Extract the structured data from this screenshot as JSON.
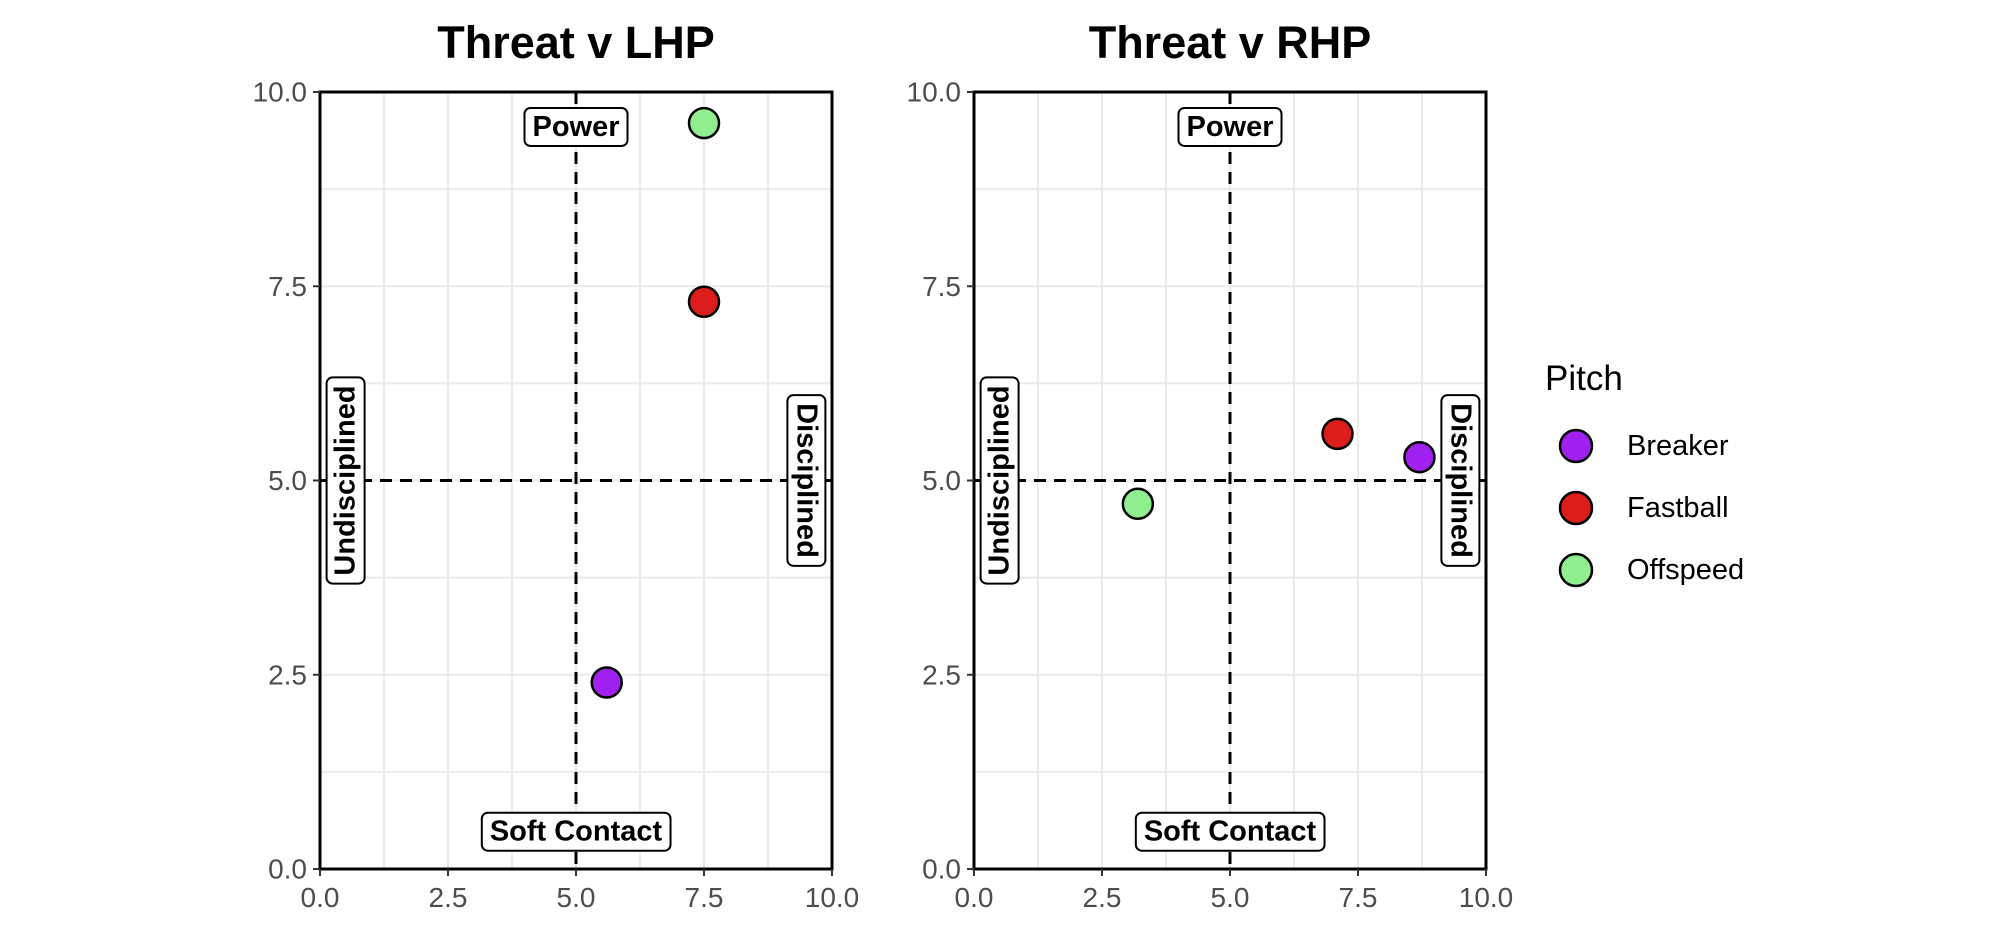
{
  "legend": {
    "title": "Pitch",
    "items": [
      {
        "label": "Breaker",
        "color": "#a020f0"
      },
      {
        "label": "Fastball",
        "color": "#dd1c1c"
      },
      {
        "label": "Offspeed",
        "color": "#90ee90"
      }
    ]
  },
  "chart_data": [
    {
      "type": "scatter",
      "title": "Threat v LHP",
      "xlim": [
        0,
        10
      ],
      "ylim": [
        0,
        10
      ],
      "xticks": [
        0.0,
        2.5,
        5.0,
        7.5,
        10.0
      ],
      "yticks": [
        0.0,
        2.5,
        5.0,
        7.5,
        10.0
      ],
      "xtick_labels": [
        "0.0",
        "2.5",
        "5.0",
        "7.5",
        "10.0"
      ],
      "ytick_labels": [
        "0.0",
        "2.5",
        "5.0",
        "7.5",
        "10.0"
      ],
      "reference_lines": {
        "x": 5.0,
        "y": 5.0,
        "style": "dashed"
      },
      "quadrant_labels": {
        "top": "Power",
        "bottom": "Soft Contact",
        "left": "Undisciplined",
        "right": "Disciplined"
      },
      "points": [
        {
          "pitch": "Offspeed",
          "x": 7.5,
          "y": 9.6
        },
        {
          "pitch": "Fastball",
          "x": 7.5,
          "y": 7.3
        },
        {
          "pitch": "Breaker",
          "x": 5.6,
          "y": 2.4
        }
      ]
    },
    {
      "type": "scatter",
      "title": "Threat v RHP",
      "xlim": [
        0,
        10
      ],
      "ylim": [
        0,
        10
      ],
      "xticks": [
        0.0,
        2.5,
        5.0,
        7.5,
        10.0
      ],
      "yticks": [
        0.0,
        2.5,
        5.0,
        7.5,
        10.0
      ],
      "xtick_labels": [
        "0.0",
        "2.5",
        "5.0",
        "7.5",
        "10.0"
      ],
      "ytick_labels": [
        "0.0",
        "2.5",
        "5.0",
        "7.5",
        "10.0"
      ],
      "reference_lines": {
        "x": 5.0,
        "y": 5.0,
        "style": "dashed"
      },
      "quadrant_labels": {
        "top": "Power",
        "bottom": "Soft Contact",
        "left": "Undisciplined",
        "right": "Disciplined"
      },
      "points": [
        {
          "pitch": "Offspeed",
          "x": 3.2,
          "y": 4.7
        },
        {
          "pitch": "Fastball",
          "x": 7.1,
          "y": 5.6
        },
        {
          "pitch": "Breaker",
          "x": 8.7,
          "y": 5.3
        }
      ]
    }
  ]
}
